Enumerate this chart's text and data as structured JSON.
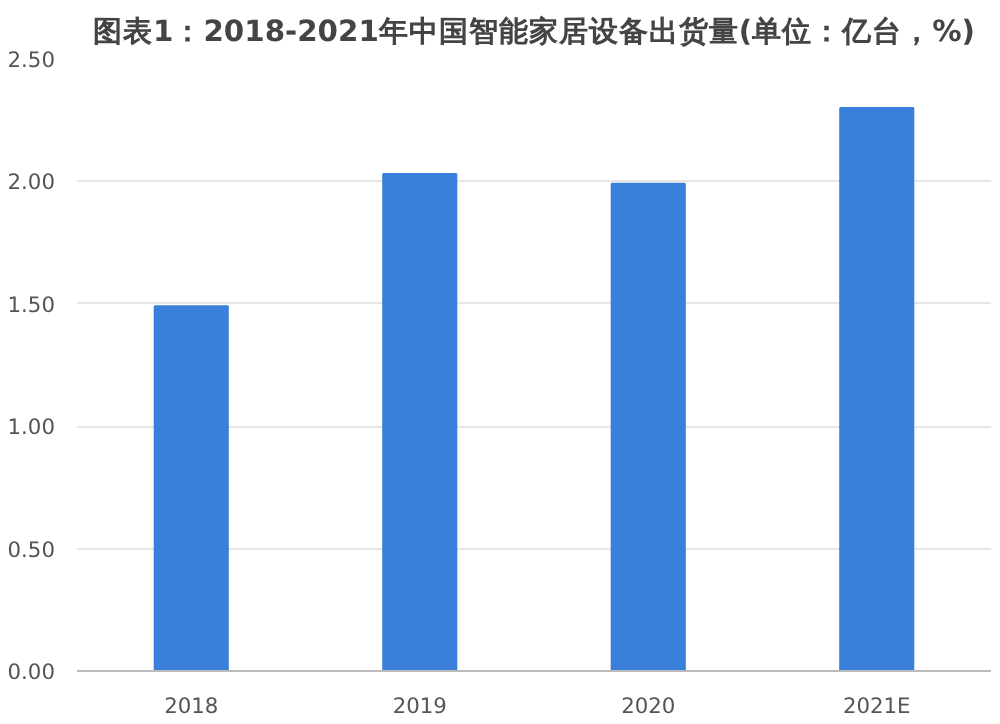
{
  "chart_data": {
    "type": "bar",
    "title": "图表1：2018-2021年中国智能家居设备出货量(单位：亿台，%)",
    "categories": [
      "2018",
      "2019",
      "2020",
      "2021E"
    ],
    "values": [
      1.49,
      2.03,
      1.99,
      2.3
    ],
    "color": "#3a7fd9",
    "ylim": [
      0,
      2.5
    ],
    "yticks": [
      {
        "value": 0,
        "label": "0.00"
      },
      {
        "value": 0.5,
        "label": "0.50"
      },
      {
        "value": 1,
        "label": "1.00"
      },
      {
        "value": 1.5,
        "label": "1.50"
      },
      {
        "value": 2,
        "label": "2.00"
      },
      {
        "value": 2.5,
        "label": "2.50"
      }
    ],
    "grid": "y"
  }
}
